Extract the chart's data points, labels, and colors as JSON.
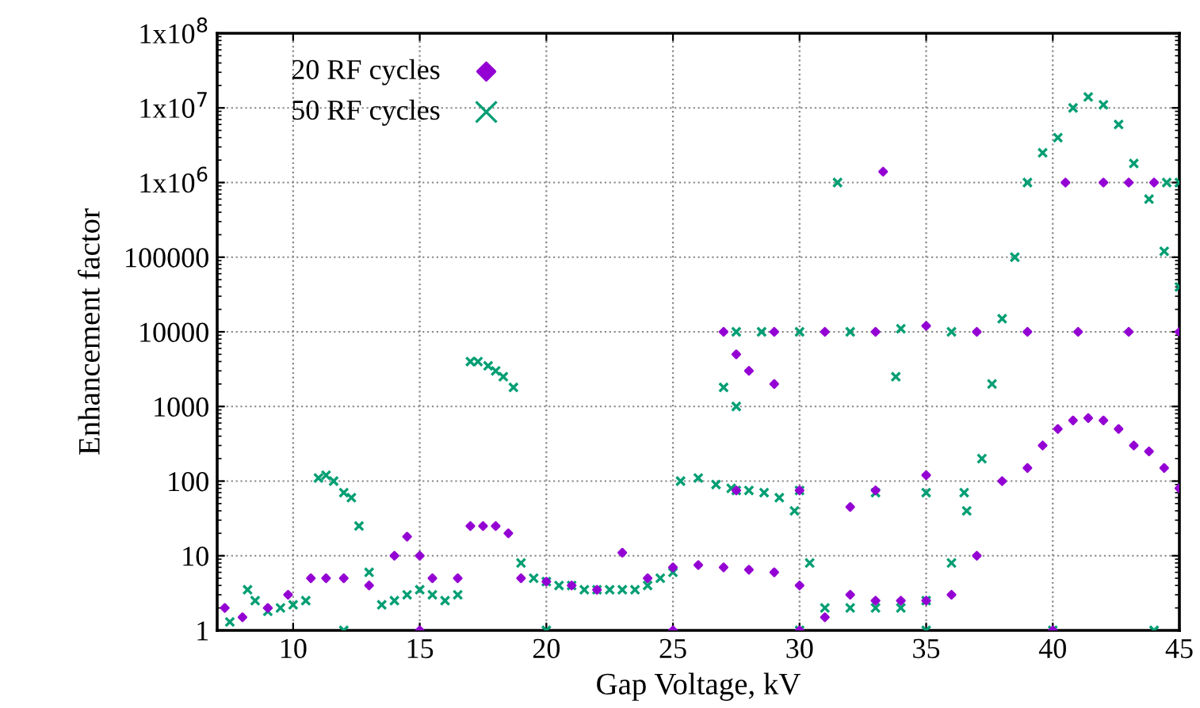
{
  "chart_data": {
    "type": "scatter",
    "xlabel": "Gap Voltage, kV",
    "ylabel": "Enhancement factor",
    "log": "y",
    "grid": true,
    "legend": "top left",
    "xlim": [
      7,
      45
    ],
    "xticks": [
      10,
      15,
      20,
      25,
      30,
      35,
      40,
      45
    ],
    "ylim": [
      1,
      100000000
    ],
    "yticks": [
      1,
      10,
      100,
      1000,
      10000,
      100000,
      {
        "value": 1000000,
        "label": "1x10$^{6}$"
      },
      {
        "value": 10000000,
        "label": "1x10$^{7}$"
      },
      {
        "value": 100000000,
        "label": "1x10$^{8}$"
      }
    ],
    "series": [
      {
        "name": "20 RF cycles",
        "color": "#9400d3",
        "marker": "diamond",
        "x": [
          7.3,
          8,
          9,
          9.8,
          10.7,
          11.3,
          12,
          13,
          14,
          14.5,
          15,
          15.5,
          16.5,
          17,
          17.5,
          18,
          18.5,
          19,
          20,
          21,
          22,
          23,
          24,
          25,
          26,
          27,
          28,
          29,
          30,
          31,
          32,
          33,
          34,
          35,
          36,
          37,
          38,
          39,
          39.6,
          40.2,
          40.8,
          41.4,
          42,
          42.6,
          43.2,
          43.8,
          44.4,
          45,
          27,
          29,
          31,
          33,
          35,
          37,
          39,
          41,
          43,
          45,
          27.5,
          28,
          29,
          33.3,
          40.5,
          42,
          43,
          44,
          27.5,
          30,
          33,
          35,
          32,
          30,
          40,
          25,
          15
        ],
        "values": [
          2,
          1.5,
          2,
          3,
          5,
          5,
          5,
          4,
          10,
          18,
          10,
          5,
          5,
          25,
          25,
          25,
          20,
          5,
          4.5,
          4,
          3.5,
          11,
          5,
          7,
          7.5,
          7,
          6.5,
          6,
          4,
          1.5,
          3,
          2.5,
          2.5,
          2.5,
          3,
          10,
          100,
          150,
          300,
          500,
          650,
          700,
          650,
          500,
          300,
          250,
          150,
          80,
          10000,
          10000,
          10000,
          10000,
          12000,
          10000,
          10000,
          10000,
          10000,
          10000,
          5000,
          3000,
          2000,
          1400000,
          1000000,
          1000000,
          1000000,
          1000000,
          75,
          75,
          75,
          120,
          45,
          1,
          1,
          1,
          1
        ]
      },
      {
        "name": "50 RF cycles",
        "color": "#009e73",
        "marker": "cross",
        "x": [
          7.5,
          8.2,
          8.5,
          9,
          9.5,
          10,
          10.5,
          11,
          11.3,
          11.6,
          12,
          12.3,
          12.6,
          13,
          13.5,
          14,
          14.5,
          15,
          15.5,
          16,
          16.5,
          17,
          17.3,
          17.7,
          18,
          18.3,
          18.7,
          19,
          19.5,
          20,
          20.5,
          21,
          21.5,
          22,
          22.5,
          23,
          23.5,
          24,
          24.5,
          25,
          25.3,
          26,
          26.7,
          27.3,
          28,
          28.6,
          29.2,
          29.8,
          30.4,
          31,
          32,
          33,
          34,
          35,
          36,
          36.6,
          37.2,
          37.6,
          38,
          38.5,
          39,
          39.6,
          40.2,
          40.8,
          41.4,
          42,
          42.6,
          43.2,
          43.8,
          44.4,
          45,
          27.5,
          28.5,
          30,
          32,
          34,
          36,
          27.5,
          30,
          33,
          35,
          36.5,
          27,
          27.5,
          33.8,
          31.5,
          44.5,
          45,
          30,
          35,
          40,
          44,
          20,
          12
        ],
        "values": [
          1.3,
          3.5,
          2.5,
          1.8,
          2,
          2.2,
          2.5,
          110,
          120,
          100,
          70,
          60,
          25,
          6,
          2.2,
          2.5,
          3,
          3.5,
          3,
          2.5,
          3,
          4000,
          4000,
          3500,
          3000,
          2500,
          1800,
          8,
          5,
          4.5,
          4,
          4,
          3.5,
          3.5,
          3.5,
          3.5,
          3.5,
          4,
          5,
          6,
          100,
          110,
          90,
          80,
          75,
          70,
          60,
          40,
          8,
          2,
          2,
          2,
          2,
          2.5,
          8,
          40,
          200,
          2000,
          15000,
          100000,
          1000000,
          2500000,
          4000000,
          10000000,
          14000000,
          11000000,
          6000000,
          1800000,
          600000,
          120000,
          40000,
          10000,
          10000,
          10000,
          10000,
          11000,
          10000,
          75,
          75,
          70,
          70,
          70,
          1800,
          1000,
          2500,
          1000000,
          1000000,
          1000000,
          1,
          1,
          1,
          1,
          1,
          1
        ]
      }
    ]
  }
}
